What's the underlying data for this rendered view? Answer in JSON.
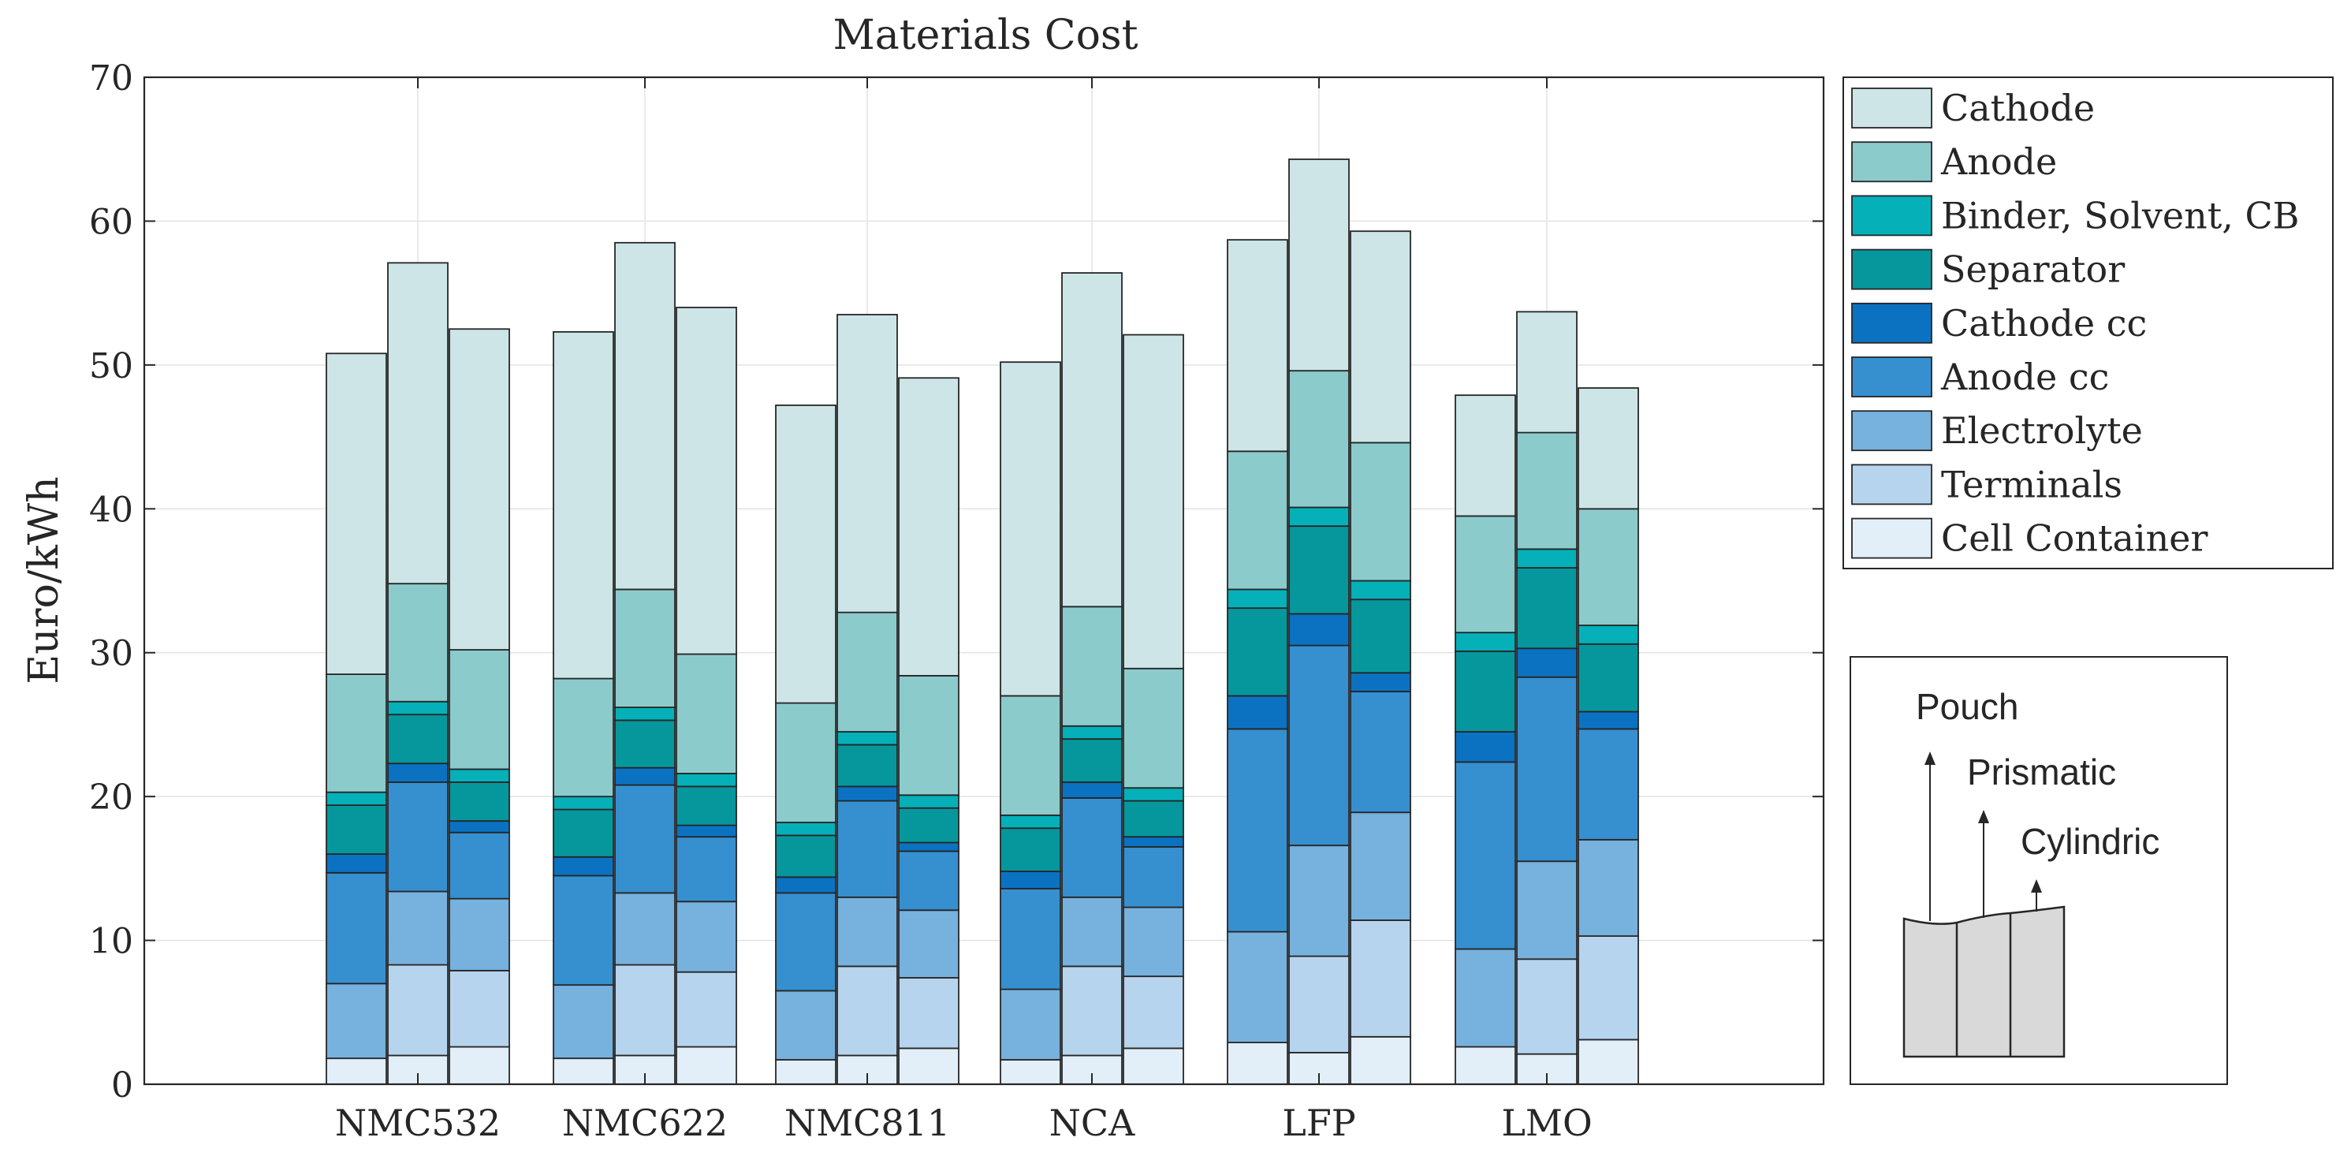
{
  "chart_data": {
    "type": "bar",
    "subtype": "grouped-stacked",
    "title": "Materials Cost",
    "ylabel": "Euro/kWh",
    "xlabel": "",
    "ylim": [
      0,
      70
    ],
    "yticks": [
      0,
      10,
      20,
      30,
      40,
      50,
      60,
      70
    ],
    "grid": true,
    "legend_position": "right",
    "categories": [
      "NMC532",
      "NMC622",
      "NMC811",
      "NCA",
      "LFP",
      "LMO"
    ],
    "formats": [
      "Pouch",
      "Prismatic",
      "Cylindric"
    ],
    "components": [
      "Cell Container",
      "Terminals",
      "Electrolyte",
      "Anode cc",
      "Cathode cc",
      "Separator",
      "Binder, Solvent, CB",
      "Anode",
      "Cathode"
    ],
    "colors": {
      "Cell Container": "#e2eff8",
      "Terminals": "#b7d4ee",
      "Electrolyte": "#77b1de",
      "Anode cc": "#3690d0",
      "Cathode cc": "#0b72c2",
      "Separator": "#06979d",
      "Binder, Solvent, CB": "#05b0b8",
      "Anode": "#8ccbcc",
      "Cathode": "#cde5e6"
    },
    "series": [
      {
        "name": "Cell Container",
        "values": [
          [
            1.8,
            2.0,
            2.6
          ],
          [
            1.8,
            2.0,
            2.6
          ],
          [
            1.7,
            2.0,
            2.5
          ],
          [
            1.7,
            2.0,
            2.5
          ],
          [
            2.9,
            2.2,
            3.3
          ],
          [
            2.6,
            2.1,
            3.1
          ]
        ]
      },
      {
        "name": "Terminals",
        "values": [
          [
            0.0,
            6.3,
            5.3
          ],
          [
            0.0,
            6.3,
            5.2
          ],
          [
            0.0,
            6.2,
            4.9
          ],
          [
            0.0,
            6.2,
            5.0
          ],
          [
            0.0,
            6.7,
            8.1
          ],
          [
            0.0,
            6.6,
            7.2
          ]
        ]
      },
      {
        "name": "Electrolyte",
        "values": [
          [
            5.2,
            5.1,
            5.0
          ],
          [
            5.1,
            5.0,
            4.9
          ],
          [
            4.8,
            4.8,
            4.7
          ],
          [
            4.9,
            4.8,
            4.8
          ],
          [
            7.7,
            7.7,
            7.5
          ],
          [
            6.8,
            6.8,
            6.7
          ]
        ]
      },
      {
        "name": "Anode cc",
        "values": [
          [
            7.7,
            7.6,
            4.6
          ],
          [
            7.6,
            7.5,
            4.5
          ],
          [
            6.8,
            6.7,
            4.1
          ],
          [
            7.0,
            6.9,
            4.2
          ],
          [
            14.1,
            13.9,
            8.4
          ],
          [
            13.0,
            12.8,
            7.7
          ]
        ]
      },
      {
        "name": "Cathode cc",
        "values": [
          [
            1.3,
            1.3,
            0.8
          ],
          [
            1.3,
            1.2,
            0.8
          ],
          [
            1.1,
            1.0,
            0.6
          ],
          [
            1.2,
            1.1,
            0.7
          ],
          [
            2.3,
            2.2,
            1.3
          ],
          [
            2.1,
            2.0,
            1.2
          ]
        ]
      },
      {
        "name": "Separator",
        "values": [
          [
            3.4,
            3.4,
            2.7
          ],
          [
            3.3,
            3.3,
            2.7
          ],
          [
            2.9,
            2.9,
            2.4
          ],
          [
            3.0,
            3.0,
            2.5
          ],
          [
            6.1,
            6.1,
            5.1
          ],
          [
            5.6,
            5.6,
            4.7
          ]
        ]
      },
      {
        "name": "Binder, Solvent, CB",
        "values": [
          [
            0.9,
            0.9,
            0.9
          ],
          [
            0.9,
            0.9,
            0.9
          ],
          [
            0.9,
            0.9,
            0.9
          ],
          [
            0.9,
            0.9,
            0.9
          ],
          [
            1.3,
            1.3,
            1.3
          ],
          [
            1.3,
            1.3,
            1.3
          ]
        ]
      },
      {
        "name": "Anode",
        "values": [
          [
            8.2,
            8.2,
            8.3
          ],
          [
            8.2,
            8.2,
            8.3
          ],
          [
            8.3,
            8.3,
            8.3
          ],
          [
            8.3,
            8.3,
            8.3
          ],
          [
            9.6,
            9.5,
            9.6
          ],
          [
            8.1,
            8.1,
            8.1
          ]
        ]
      },
      {
        "name": "Cathode",
        "values": [
          [
            22.3,
            22.3,
            22.3
          ],
          [
            24.1,
            24.1,
            24.1
          ],
          [
            20.7,
            20.7,
            20.7
          ],
          [
            23.2,
            23.2,
            23.2
          ],
          [
            14.7,
            14.7,
            14.7
          ],
          [
            8.4,
            8.4,
            8.4
          ]
        ]
      }
    ],
    "totals": [
      [
        50.8,
        57.1,
        52.5
      ],
      [
        52.3,
        58.5,
        54.0
      ],
      [
        47.2,
        53.4,
        49.1
      ],
      [
        50.2,
        56.4,
        52.1
      ],
      [
        58.7,
        64.3,
        59.3
      ],
      [
        47.9,
        53.7,
        48.4
      ]
    ]
  },
  "legend": {
    "items": [
      {
        "label": "Cathode",
        "color": "#cde5e6"
      },
      {
        "label": "Anode",
        "color": "#8ccbcc"
      },
      {
        "label": "Binder, Solvent, CB",
        "color": "#05b0b8"
      },
      {
        "label": "Separator",
        "color": "#06979d"
      },
      {
        "label": "Cathode cc",
        "color": "#0b72c2"
      },
      {
        "label": "Anode cc",
        "color": "#3690d0"
      },
      {
        "label": "Electrolyte",
        "color": "#77b1de"
      },
      {
        "label": "Terminals",
        "color": "#b7d4ee"
      },
      {
        "label": "Cell Container",
        "color": "#e2eff8"
      }
    ]
  },
  "inset": {
    "labels": {
      "pouch": "Pouch",
      "prismatic": "Prismatic",
      "cylindric": "Cylindric"
    },
    "cell_color": "#d9d9d9"
  }
}
